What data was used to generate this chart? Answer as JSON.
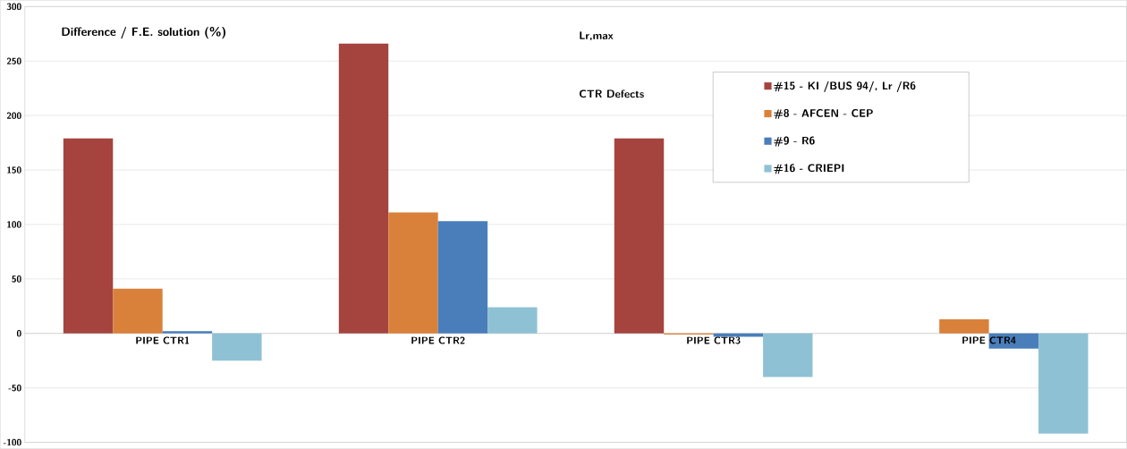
{
  "chart_data": {
    "type": "bar",
    "title": "Lr,max",
    "subtitle": "CTR Defects",
    "ylabel": "Difference / F.E. solution (%)",
    "categories": [
      "PIPE CTR1",
      "PIPE CTR2",
      "PIPE CTR3",
      "PIPE CTR4"
    ],
    "series": [
      {
        "name": "#15 - KI /BUS 94/, Lr /R6",
        "color": "#a5443f",
        "values": [
          179,
          266,
          179,
          0
        ]
      },
      {
        "name": "#8 - AFCEN - CEP",
        "color": "#d9813a",
        "values": [
          41,
          111,
          -1,
          13
        ]
      },
      {
        "name": "#9 - R6",
        "color": "#4a7ebb",
        "values": [
          2,
          103,
          -3,
          -14
        ]
      },
      {
        "name": "#16 - CRIEPI",
        "color": "#8fc1d4",
        "values": [
          -25,
          24,
          -40,
          -92
        ]
      }
    ],
    "ylim": [
      -100,
      300
    ],
    "yticks": [
      -100,
      -50,
      0,
      50,
      100,
      150,
      200,
      250,
      300
    ],
    "grid": "y",
    "legend": "top right"
  }
}
